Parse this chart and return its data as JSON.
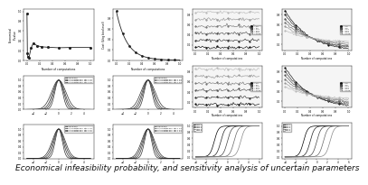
{
  "caption": "Economical infeasibility probability, and sensitivity analysis of uncertain parameters",
  "bg_color": "#ffffff",
  "caption_fontsize": 6.5,
  "line_color": "#333333"
}
